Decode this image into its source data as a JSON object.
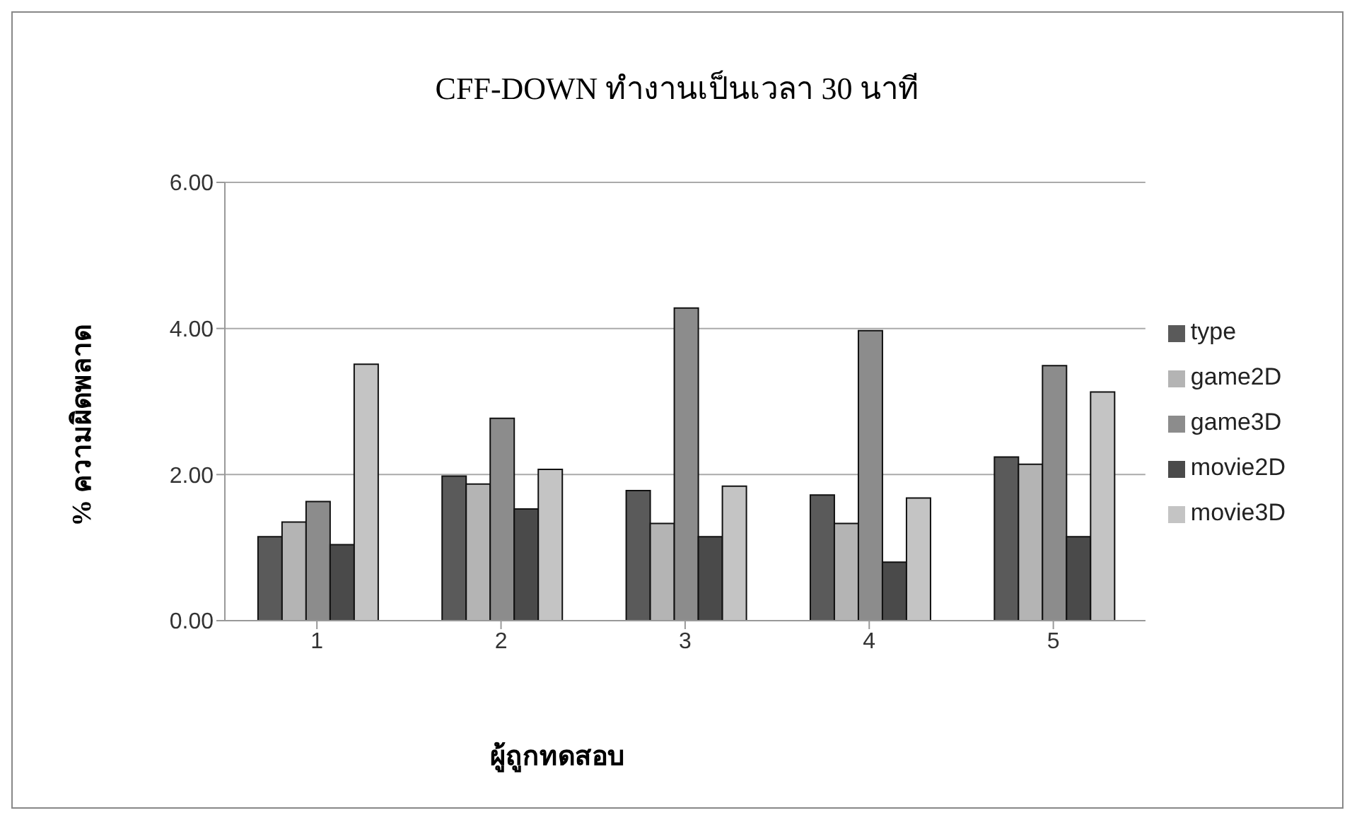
{
  "chart_data": {
    "type": "bar",
    "title": "CFF-DOWN ทำงานเป็นเวลา 30 นาที",
    "xlabel": "ผู้ถูกทดสอบ",
    "ylabel": "% ความผิดพลาด",
    "categories": [
      "1",
      "2",
      "3",
      "4",
      "5"
    ],
    "series": [
      {
        "name": "type",
        "color": "#5a5a5a",
        "values": [
          1.15,
          1.98,
          1.78,
          1.72,
          2.24
        ]
      },
      {
        "name": "game2D",
        "color": "#b4b4b4",
        "values": [
          1.35,
          1.87,
          1.33,
          1.33,
          2.14
        ]
      },
      {
        "name": "game3D",
        "color": "#8c8c8c",
        "values": [
          1.63,
          2.77,
          4.28,
          3.97,
          3.49
        ]
      },
      {
        "name": "movie2D",
        "color": "#4a4a4a",
        "values": [
          1.04,
          1.53,
          1.15,
          0.8,
          1.15
        ]
      },
      {
        "name": "movie3D",
        "color": "#c4c4c4",
        "values": [
          3.51,
          2.07,
          1.84,
          1.68,
          3.13
        ]
      }
    ],
    "ylim": [
      0,
      6
    ],
    "yticks": [
      {
        "value": 0,
        "label": "0.00"
      },
      {
        "value": 2,
        "label": "2.00"
      },
      {
        "value": 4,
        "label": "4.00"
      },
      {
        "value": 6,
        "label": "6.00"
      }
    ],
    "grid": "y",
    "legend": "right"
  }
}
